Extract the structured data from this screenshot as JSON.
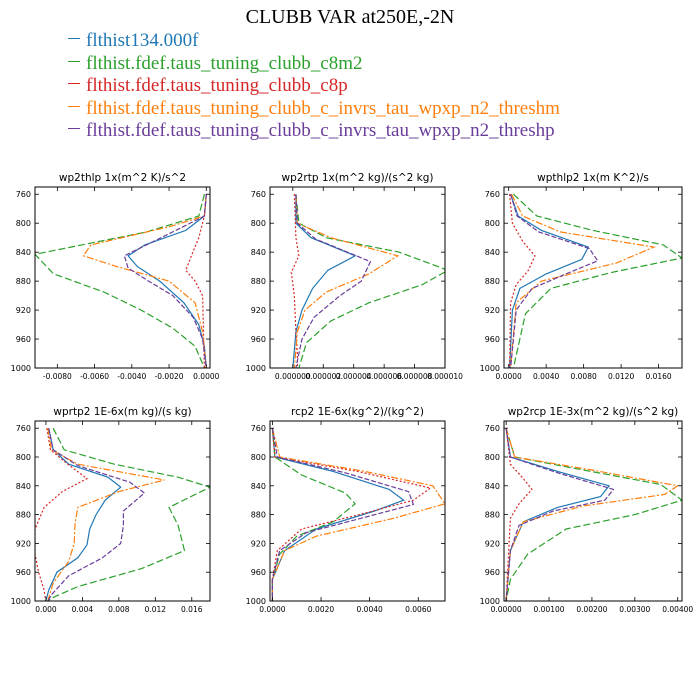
{
  "title": "CLUBB VAR at250E,-2N",
  "legend": [
    {
      "label": "flthist134.000f",
      "color": "#1f77b4"
    },
    {
      "label": "flthist.fdef.taus_tuning_clubb_c8m2",
      "color": "#2ca02c"
    },
    {
      "label": "flthist.fdef.taus_tuning_clubb_c8p",
      "color": "#d62728"
    },
    {
      "label": "flthist.fdef.taus_tuning_clubb_c_invrs_tau_wpxp_n2_threshm",
      "color": "#ff7f0e"
    },
    {
      "label": "flthist.fdef.taus_tuning_clubb_c_invrs_tau_wpxp_n2_threshp",
      "color": "#6a3d9a"
    }
  ],
  "chart_data": [
    {
      "type": "line",
      "title": "wp2thlp   1x(m^2 K)/s^2",
      "xlim": [
        -0.0092,
        0.0002
      ],
      "ylim": [
        1000,
        750
      ],
      "xticks": [
        -0.008,
        -0.006,
        -0.004,
        -0.002,
        0.0
      ],
      "xticklabels": [
        "-0.0080",
        "-0.0060",
        "-0.0040",
        "-0.0020",
        "0.0000"
      ],
      "yticks": [
        760,
        800,
        840,
        880,
        920,
        960,
        1000
      ],
      "series": [
        {
          "x": [
            0.0,
            -0.0001,
            -0.0011,
            -0.0033,
            -0.0042,
            -0.0037,
            -0.0025,
            -0.0012,
            -0.0004,
            -0.0001,
            0.0
          ],
          "y": [
            760,
            790,
            810,
            830,
            845,
            860,
            880,
            910,
            940,
            970,
            1000
          ]
        },
        {
          "x": [
            -0.0001,
            -0.0004,
            -0.0032,
            -0.0092,
            -0.0082,
            -0.0055,
            -0.0035,
            -0.0018,
            -0.0006,
            -0.0001
          ],
          "y": [
            760,
            790,
            812,
            843,
            870,
            895,
            920,
            945,
            970,
            1000
          ]
        },
        {
          "x": [
            0.0,
            -0.0001,
            -0.0004,
            -0.0008,
            -0.0011,
            -0.0006,
            -0.0002,
            -0.0001
          ],
          "y": [
            760,
            790,
            820,
            845,
            865,
            880,
            900,
            1000
          ]
        },
        {
          "x": [
            0.0,
            -0.0001,
            -0.002,
            -0.0062,
            -0.0066,
            -0.0048,
            -0.002,
            -0.0006,
            -0.0002,
            0.0
          ],
          "y": [
            760,
            790,
            805,
            830,
            845,
            860,
            880,
            910,
            950,
            1000
          ]
        },
        {
          "x": [
            0.0,
            -0.0001,
            -0.0018,
            -0.0044,
            -0.0042,
            -0.0031,
            -0.0018,
            -0.0007,
            -0.0002,
            0.0
          ],
          "y": [
            760,
            790,
            812,
            845,
            862,
            880,
            900,
            930,
            960,
            1000
          ]
        }
      ]
    },
    {
      "type": "line",
      "title": "wp2rtp   1x(m^2 kg)/(s^2 kg)",
      "xlim": [
        -1.5e-06,
        1e-05
      ],
      "ylim": [
        1000,
        750
      ],
      "xticks": [
        0.0,
        2e-06,
        4e-06,
        6e-06,
        8e-06,
        1e-05
      ],
      "xticklabels": [
        "0.000000",
        "0.000002",
        "0.000004",
        "0.000006",
        "0.000008",
        "0.000010"
      ],
      "yticks": [
        760,
        800,
        840,
        880,
        920,
        960,
        1000
      ],
      "series": [
        {
          "x": [
            2e-07,
            2e-07,
            1.2e-06,
            4.1e-06,
            2.3e-06,
            1.3e-06,
            6e-07,
            2e-07,
            0.0
          ],
          "y": [
            760,
            800,
            820,
            845,
            865,
            890,
            920,
            950,
            1000
          ]
        },
        {
          "x": [
            2e-07,
            4e-07,
            2.2e-06,
            7e-06,
            1.02e-05,
            8.5e-06,
            5e-06,
            2.5e-06,
            9e-07,
            4e-07
          ],
          "y": [
            760,
            800,
            820,
            840,
            865,
            885,
            910,
            935,
            965,
            1000
          ]
        },
        {
          "x": [
            1e-07,
            2e-07,
            4e-07,
            -1e-07,
            1e-07,
            2e-07,
            3e-07,
            3e-07
          ],
          "y": [
            760,
            820,
            845,
            868,
            900,
            950,
            980,
            1000
          ]
        },
        {
          "x": [
            2e-07,
            3e-07,
            2.5e-06,
            6.9e-06,
            5e-06,
            2.2e-06,
            8e-07,
            3e-07,
            1e-07
          ],
          "y": [
            760,
            800,
            820,
            845,
            870,
            895,
            920,
            950,
            1000
          ]
        },
        {
          "x": [
            2e-07,
            3e-07,
            1.5e-06,
            5.1e-06,
            4.5e-06,
            3.1e-06,
            1.4e-06,
            6e-07,
            2e-07
          ],
          "y": [
            760,
            800,
            822,
            853,
            880,
            900,
            930,
            960,
            1000
          ]
        }
      ]
    },
    {
      "type": "line",
      "title": "wpthlp2   1x(m K^2)/s",
      "xlim": [
        -0.0005,
        0.0185
      ],
      "ylim": [
        1000,
        750
      ],
      "xticks": [
        0.0,
        0.004,
        0.008,
        0.012,
        0.016
      ],
      "xticklabels": [
        "0.0000",
        "0.0040",
        "0.0080",
        "0.0120",
        "0.0160"
      ],
      "yticks": [
        760,
        800,
        840,
        880,
        920,
        960,
        1000
      ],
      "series": [
        {
          "x": [
            0.0002,
            0.001,
            0.0035,
            0.0085,
            0.0078,
            0.004,
            0.0012,
            0.0004,
            0.0001
          ],
          "y": [
            760,
            790,
            810,
            833,
            850,
            870,
            890,
            920,
            1000
          ]
        },
        {
          "x": [
            0.0005,
            0.003,
            0.009,
            0.0165,
            0.0185,
            0.011,
            0.0045,
            0.0018,
            0.0005
          ],
          "y": [
            760,
            790,
            810,
            830,
            848,
            868,
            890,
            925,
            1000
          ]
        },
        {
          "x": [
            0.0001,
            0.0004,
            0.0015,
            0.0028,
            0.0021,
            0.0008,
            0.0002,
            0.0001
          ],
          "y": [
            760,
            800,
            825,
            845,
            865,
            885,
            910,
            1000
          ]
        },
        {
          "x": [
            0.0003,
            0.0015,
            0.0055,
            0.0155,
            0.0115,
            0.0035,
            0.0008,
            0.0002
          ],
          "y": [
            760,
            790,
            812,
            833,
            855,
            880,
            910,
            1000
          ]
        },
        {
          "x": [
            0.0002,
            0.0009,
            0.0032,
            0.0086,
            0.0095,
            0.0065,
            0.0025,
            0.0008,
            0.0002
          ],
          "y": [
            760,
            790,
            812,
            835,
            852,
            868,
            890,
            920,
            1000
          ]
        }
      ]
    },
    {
      "type": "line",
      "title": "wprtp2   1E-6x(m kg)/(s kg)",
      "xlim": [
        -0.0012,
        0.018
      ],
      "ylim": [
        1000,
        750
      ],
      "xticks": [
        0.0,
        0.004,
        0.008,
        0.012,
        0.016
      ],
      "xticklabels": [
        "0.000",
        "0.004",
        "0.008",
        "0.012",
        "0.016"
      ],
      "yticks": [
        760,
        800,
        840,
        880,
        920,
        960,
        1000
      ],
      "series": [
        {
          "x": [
            0.0003,
            0.0008,
            0.0025,
            0.0068,
            0.0082,
            0.0065,
            0.0055,
            0.0048,
            0.0045,
            0.0035,
            0.0012,
            0.0003,
            0.0
          ],
          "y": [
            760,
            790,
            810,
            828,
            842,
            860,
            880,
            900,
            922,
            940,
            960,
            985,
            1000
          ]
        },
        {
          "x": [
            0.0008,
            0.002,
            0.0075,
            0.0145,
            0.018,
            0.0135,
            0.0145,
            0.0152,
            0.0105,
            0.0035,
            0.0008,
            0.0002
          ],
          "y": [
            760,
            790,
            810,
            828,
            842,
            870,
            895,
            930,
            955,
            980,
            995,
            1000
          ]
        },
        {
          "x": [
            0.0001,
            0.0005,
            0.0022,
            0.0045,
            0.0018,
            -0.0002,
            -0.0012,
            -0.0012,
            -0.0008,
            -0.0002,
            0.0
          ],
          "y": [
            760,
            790,
            808,
            830,
            848,
            870,
            900,
            935,
            960,
            985,
            1000
          ]
        },
        {
          "x": [
            0.0002,
            0.0006,
            0.0035,
            0.013,
            0.008,
            0.0035,
            0.0032,
            0.0031,
            0.0025,
            0.0008,
            0.0002
          ],
          "y": [
            760,
            790,
            810,
            832,
            848,
            870,
            892,
            920,
            945,
            975,
            1000
          ]
        },
        {
          "x": [
            0.0003,
            0.0008,
            0.0035,
            0.0092,
            0.0108,
            0.0085,
            0.0085,
            0.0082,
            0.0062,
            0.0025,
            0.0007,
            0.0002
          ],
          "y": [
            760,
            790,
            812,
            835,
            850,
            875,
            895,
            920,
            940,
            965,
            990,
            1000
          ]
        }
      ]
    },
    {
      "type": "line",
      "title": "rcp2   1E-6x(kg^2)/(kg^2)",
      "xlim": [
        -0.0001,
        0.0071
      ],
      "ylim": [
        1000,
        750
      ],
      "xticks": [
        0.0,
        0.002,
        0.004,
        0.006
      ],
      "xticklabels": [
        "0.0000",
        "0.0020",
        "0.0040",
        "0.0060"
      ],
      "yticks": [
        760,
        800,
        840,
        880,
        920,
        960,
        1000
      ],
      "series": [
        {
          "x": [
            0.0,
            0.0001,
            0.0025,
            0.0048,
            0.0054,
            0.0042,
            0.0018,
            0.0005,
            0.0,
            0.0
          ],
          "y": [
            760,
            800,
            820,
            845,
            860,
            875,
            900,
            930,
            970,
            1000
          ]
        },
        {
          "x": [
            0.0,
            0.0001,
            0.0012,
            0.003,
            0.0034,
            0.0025,
            0.001,
            0.0003,
            0.0,
            0.0
          ],
          "y": [
            760,
            800,
            825,
            850,
            865,
            890,
            910,
            935,
            970,
            1000
          ]
        },
        {
          "x": [
            0.0,
            0.0001,
            0.0035,
            0.0065,
            0.0058,
            0.0038,
            0.0012,
            0.0002,
            0.0,
            0.0
          ],
          "y": [
            760,
            800,
            820,
            843,
            860,
            878,
            900,
            930,
            970,
            1000
          ]
        },
        {
          "x": [
            0.0,
            0.0003,
            0.0038,
            0.0066,
            0.0071,
            0.005,
            0.0018,
            0.0005,
            0.0,
            0.0
          ],
          "y": [
            760,
            800,
            820,
            840,
            865,
            885,
            910,
            930,
            970,
            1000
          ]
        },
        {
          "x": [
            0.0,
            0.0002,
            0.003,
            0.0056,
            0.0058,
            0.004,
            0.0014,
            0.0003,
            0.0,
            0.0
          ],
          "y": [
            760,
            800,
            822,
            848,
            866,
            882,
            905,
            930,
            970,
            1000
          ]
        }
      ]
    },
    {
      "type": "line",
      "title": "wp2rcp   1E-3x(m^2 kg)/(s^2 kg)",
      "xlim": [
        -5e-05,
        0.0041
      ],
      "ylim": [
        1000,
        750
      ],
      "xticks": [
        0.0,
        0.001,
        0.002,
        0.003,
        0.004
      ],
      "xticklabels": [
        "0.00000",
        "0.00100",
        "0.00200",
        "0.00300",
        "0.00400"
      ],
      "yticks": [
        760,
        800,
        840,
        880,
        920,
        960,
        1000
      ],
      "series": [
        {
          "x": [
            0.0,
            0.0001,
            0.0012,
            0.0024,
            0.0022,
            0.0012,
            0.0004,
            0.0001,
            0.0
          ],
          "y": [
            760,
            800,
            820,
            840,
            855,
            870,
            890,
            930,
            1000
          ]
        },
        {
          "x": [
            0.0,
            0.0002,
            0.0018,
            0.0036,
            0.0041,
            0.003,
            0.0014,
            0.0005,
            0.0001,
            0.0
          ],
          "y": [
            760,
            800,
            818,
            838,
            860,
            880,
            900,
            935,
            970,
            1000
          ]
        },
        {
          "x": [
            0.0,
            0.0001,
            0.0004,
            0.0006,
            0.0003,
            0.0001,
            0.0
          ],
          "y": [
            760,
            810,
            830,
            845,
            865,
            885,
            1000
          ]
        },
        {
          "x": [
            0.0,
            0.0002,
            0.002,
            0.004,
            0.0037,
            0.0018,
            0.0004,
            0.0001,
            0.0
          ],
          "y": [
            760,
            800,
            818,
            840,
            852,
            868,
            890,
            930,
            1000
          ]
        },
        {
          "x": [
            0.0,
            0.0001,
            0.0012,
            0.0025,
            0.0023,
            0.0011,
            0.0003,
            0.0001,
            0.0
          ],
          "y": [
            760,
            800,
            822,
            845,
            860,
            875,
            895,
            930,
            1000
          ]
        }
      ]
    }
  ]
}
